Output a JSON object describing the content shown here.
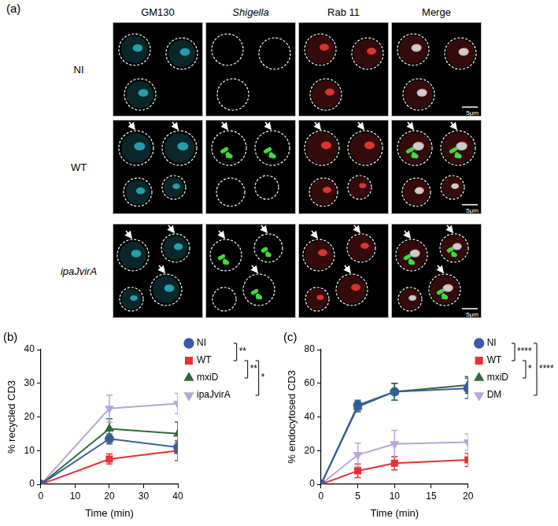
{
  "panel_a": {
    "label": "(a)",
    "columns": [
      "GM130",
      "Shigella",
      "Rab 11",
      "Merge"
    ],
    "rows": [
      {
        "label": "NI",
        "scale_bar": "5μm"
      },
      {
        "label": "WT",
        "scale_bar": "5μm"
      },
      {
        "label": "ipaJvirA",
        "scale_bar": "5μm"
      }
    ]
  },
  "chart_data": [
    {
      "type": "line",
      "title": "(b)",
      "x_label": "Time (min)",
      "y_label": "% recycled CD3",
      "x": [
        0,
        20,
        40
      ],
      "xlim": [
        0,
        40
      ],
      "xticks": [
        0,
        10,
        20,
        30,
        40
      ],
      "ylim": [
        0,
        40
      ],
      "yticks": [
        0,
        10,
        20,
        30,
        40
      ],
      "grid": false,
      "legend": "right",
      "series": [
        {
          "name": "NI",
          "color": "#3b5ba9",
          "marker": "circle",
          "values": [
            0,
            13.5,
            11
          ],
          "errors": [
            0,
            1.5,
            1.5
          ]
        },
        {
          "name": "WT",
          "color": "#e8312f",
          "marker": "square",
          "values": [
            0,
            7.5,
            10
          ],
          "errors": [
            0,
            1.5,
            3
          ]
        },
        {
          "name": "mxiD",
          "color": "#2f6b3a",
          "marker": "triangle",
          "values": [
            0,
            16.5,
            15
          ],
          "errors": [
            0,
            3,
            3.5
          ]
        },
        {
          "name": "ipaJvirA",
          "color": "#b7a6de",
          "marker": "triangle-down",
          "values": [
            0,
            22.5,
            24
          ],
          "errors": [
            0,
            4,
            3
          ]
        }
      ],
      "annotations": [
        {
          "text": "**",
          "series": [
            "NI",
            "WT"
          ]
        },
        {
          "text": "**",
          "series": [
            "WT",
            "mxiD"
          ]
        },
        {
          "text": "*",
          "series": [
            "WT",
            "ipaJvirA"
          ]
        }
      ]
    },
    {
      "type": "line",
      "title": "(c)",
      "x_label": "Time (min)",
      "y_label": "% endocytosed CD3",
      "x": [
        0,
        5,
        10,
        20
      ],
      "xlim": [
        0,
        20
      ],
      "xticks": [
        0,
        5,
        10,
        15,
        20
      ],
      "ylim": [
        0,
        80
      ],
      "yticks": [
        0,
        20,
        40,
        60,
        80
      ],
      "grid": false,
      "legend": "right",
      "series": [
        {
          "name": "NI",
          "color": "#3b5ba9",
          "marker": "circle",
          "values": [
            0,
            47,
            55,
            57
          ],
          "errors": [
            0,
            3,
            5,
            6
          ]
        },
        {
          "name": "WT",
          "color": "#e8312f",
          "marker": "square",
          "values": [
            0,
            8,
            12.5,
            14.5
          ],
          "errors": [
            0,
            4,
            4,
            4
          ]
        },
        {
          "name": "mxiD",
          "color": "#2f6b3a",
          "marker": "triangle",
          "values": [
            0,
            46,
            55,
            59
          ],
          "errors": [
            0,
            3,
            5,
            5
          ]
        },
        {
          "name": "DM",
          "color": "#b7a6de",
          "marker": "triangle-down",
          "values": [
            0,
            17.5,
            24,
            25
          ],
          "errors": [
            0,
            7,
            8,
            5
          ]
        }
      ],
      "annotations": [
        {
          "text": "****",
          "series": [
            "NI",
            "WT"
          ]
        },
        {
          "text": "*",
          "series": [
            "WT",
            "mxiD"
          ]
        },
        {
          "text": "****",
          "series": [
            "NI",
            "DM"
          ]
        }
      ]
    }
  ]
}
